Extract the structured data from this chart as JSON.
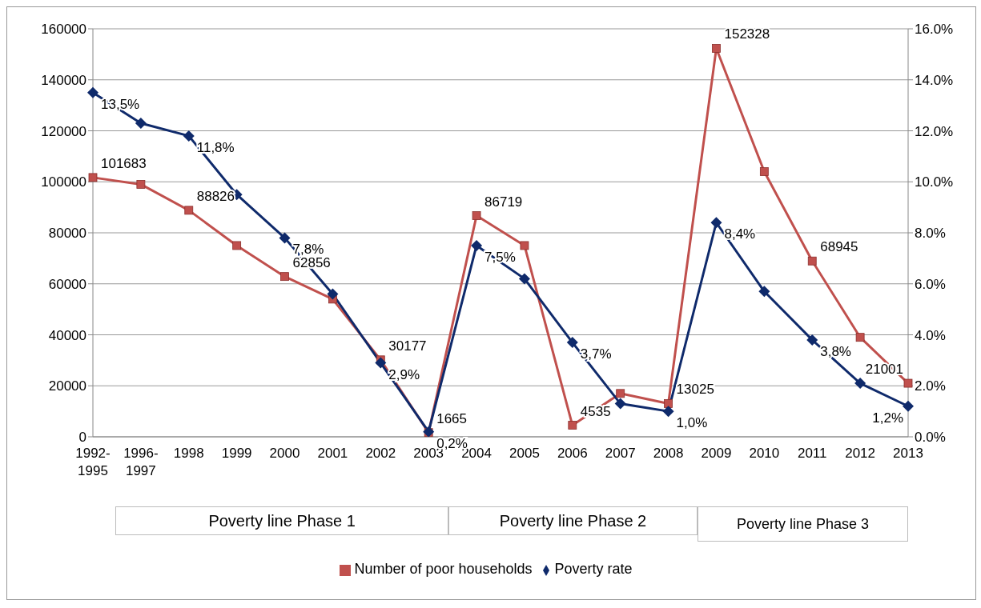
{
  "chart_data": {
    "type": "line",
    "categories": [
      "1992-1995",
      "1996-1997",
      "1998",
      "1999",
      "2000",
      "2001",
      "2002",
      "2003",
      "2004",
      "2005",
      "2006",
      "2007",
      "2008",
      "2009",
      "2010",
      "2011",
      "2012",
      "2013"
    ],
    "series": [
      {
        "name": "Number of poor households",
        "color": "#c0504d",
        "marker": "square",
        "values": [
          101683,
          99000,
          88826,
          75000,
          62856,
          54000,
          30177,
          1665,
          86719,
          75000,
          4535,
          17000,
          13025,
          152328,
          104000,
          68945,
          39000,
          21001
        ],
        "value_labels": [
          "101683",
          null,
          "88826",
          null,
          "62856",
          null,
          "30177",
          "1665",
          "86719",
          null,
          "4535",
          null,
          "13025",
          "152328",
          null,
          "68945",
          null,
          "21001"
        ]
      },
      {
        "name": "Poverty rate",
        "color": "#0f2a6b",
        "marker": "diamond",
        "axis": "y2",
        "values": [
          13.5,
          12.3,
          11.8,
          9.5,
          7.8,
          5.6,
          2.9,
          0.2,
          7.5,
          6.2,
          3.7,
          1.3,
          1.0,
          8.4,
          5.7,
          3.8,
          2.1,
          1.2
        ],
        "value_labels": [
          "13,5%",
          null,
          "11,8%",
          null,
          "7,8%",
          null,
          "2,9%",
          "0,2%",
          "7,5%",
          null,
          "3,7%",
          null,
          "1,0%",
          "8,4%",
          null,
          "3,8%",
          null,
          "1,2%"
        ]
      }
    ],
    "ylim": [
      0,
      160000
    ],
    "yticks": [
      0,
      20000,
      40000,
      60000,
      80000,
      100000,
      120000,
      140000,
      160000
    ],
    "y2lim": [
      0,
      16
    ],
    "y2ticks": [
      {
        "value": 0,
        "label": "0.0%"
      },
      {
        "value": 2,
        "label": "2.0%"
      },
      {
        "value": 4,
        "label": "4.0%"
      },
      {
        "value": 6,
        "label": "6.0%"
      },
      {
        "value": 8,
        "label": "8.0%"
      },
      {
        "value": 10,
        "label": "10.0%"
      },
      {
        "value": 12,
        "label": "12.0%"
      },
      {
        "value": 14,
        "label": "14.0%"
      },
      {
        "value": 16,
        "label": "16.0%"
      }
    ],
    "grid": "y",
    "legend": "bottom",
    "line_style": "solid",
    "annotations": [
      "Poverty line Phase 1",
      "Poverty line Phase 2",
      "Poverty line Phase 3"
    ]
  }
}
